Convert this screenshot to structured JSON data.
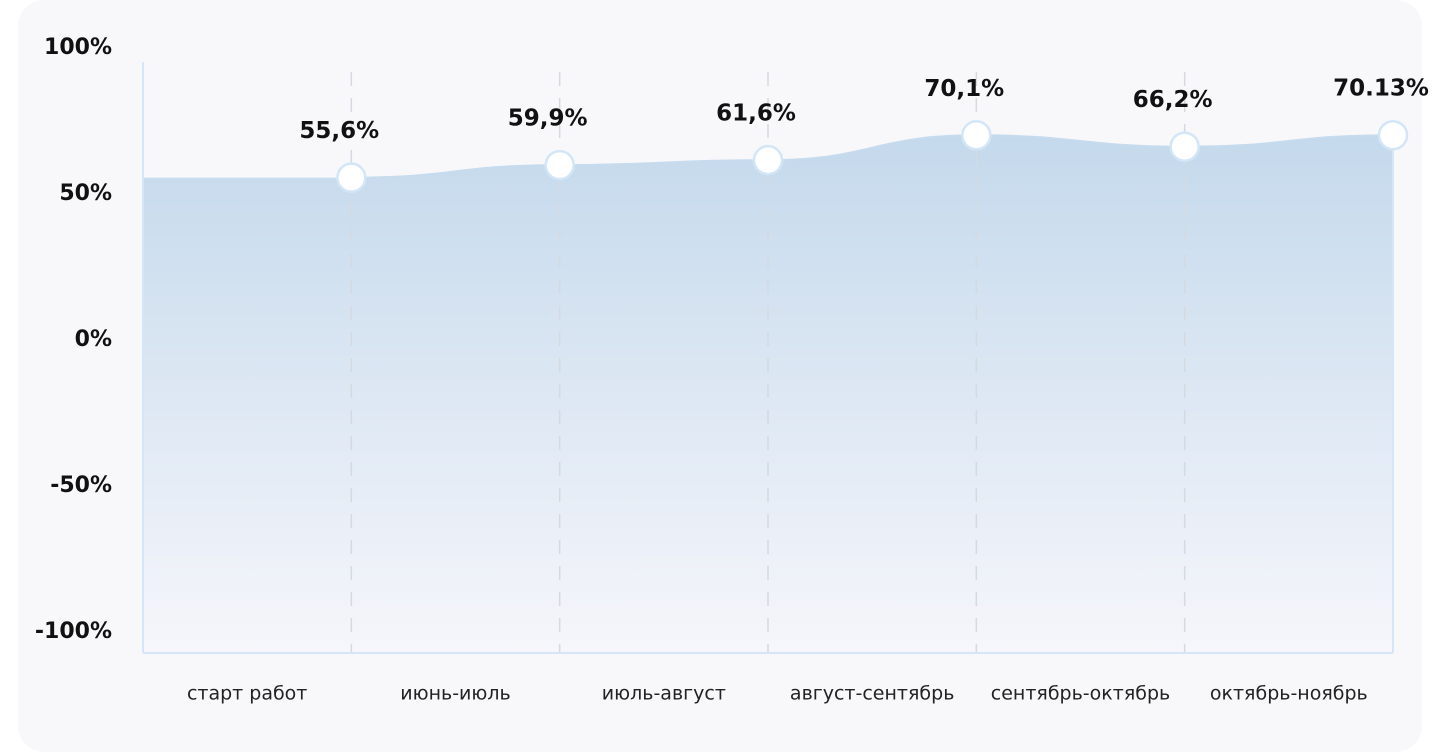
{
  "chart_data": {
    "type": "area",
    "categories": [
      "старт работ",
      "июнь-июль",
      "июль-август",
      "август-сентябрь",
      "сентябрь-октябрь",
      "октябрь-ноябрь"
    ],
    "values": [
      55.6,
      59.9,
      61.6,
      70.1,
      66.2,
      70.13
    ],
    "value_labels": [
      "55,6%",
      "59,9%",
      "61,6%",
      "70,1%",
      "66,2%",
      "70.13%"
    ],
    "color": "#c6dbee",
    "ylim": [
      -100,
      100
    ],
    "yticks": [
      {
        "value": 100,
        "label": "100%"
      },
      {
        "value": 50,
        "label": "50%"
      },
      {
        "value": 0,
        "label": "0%"
      },
      {
        "value": -50,
        "label": "-50%"
      },
      {
        "value": -100,
        "label": "-100%"
      }
    ]
  }
}
